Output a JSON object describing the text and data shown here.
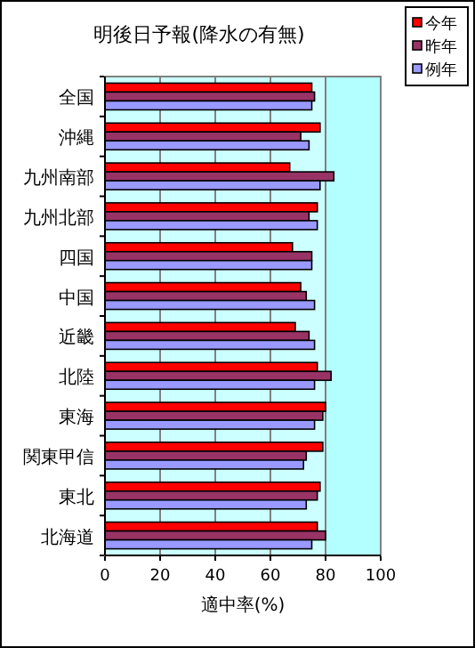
{
  "chart_data": {
    "type": "bar",
    "orientation": "horizontal",
    "title": "明後日予報(降水の有無)",
    "xlabel": "適中率(%)",
    "categories": [
      "全国",
      "沖縄",
      "九州南部",
      "九州北部",
      "四国",
      "中国",
      "近畿",
      "北陸",
      "東海",
      "関東甲信",
      "東北",
      "北海道"
    ],
    "series": [
      {
        "name": "今年",
        "color": "#ff0000",
        "values": [
          75,
          78,
          67,
          77,
          68,
          71,
          69,
          77,
          80,
          79,
          78,
          77
        ]
      },
      {
        "name": "昨年",
        "color": "#993366",
        "values": [
          76,
          71,
          83,
          74,
          75,
          73,
          74,
          82,
          79,
          73,
          77,
          80
        ]
      },
      {
        "name": "例年",
        "color": "#9999ff",
        "values": [
          75,
          74,
          78,
          77,
          75,
          76,
          76,
          76,
          76,
          72,
          73,
          75
        ]
      }
    ],
    "xlim": [
      0,
      100
    ],
    "xticks": [
      0,
      20,
      40,
      60,
      80,
      100
    ],
    "grid": "x",
    "legend": "top right",
    "bands": [
      {
        "axis": "x",
        "from": 80,
        "to": 100,
        "color": "#b3ffff"
      }
    ]
  }
}
